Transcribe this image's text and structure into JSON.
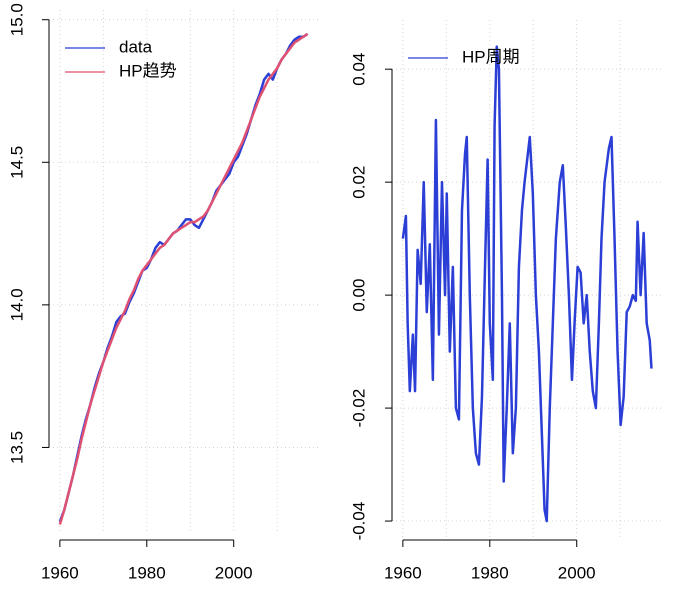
{
  "chart_data": [
    {
      "type": "line",
      "legend": "topleft",
      "grid": true,
      "x": [
        1960,
        1961,
        1962,
        1963,
        1964,
        1965,
        1966,
        1967,
        1968,
        1969,
        1970,
        1971,
        1972,
        1973,
        1974,
        1975,
        1976,
        1977,
        1978,
        1979,
        1980,
        1981,
        1982,
        1983,
        1984,
        1985,
        1986,
        1987,
        1988,
        1989,
        1990,
        1991,
        1992,
        1993,
        1994,
        1995,
        1996,
        1997,
        1998,
        1999,
        2000,
        2001,
        2002,
        2003,
        2004,
        2005,
        2006,
        2007,
        2008,
        2009,
        2010,
        2011,
        2012,
        2013,
        2014,
        2015,
        2016,
        2017
      ],
      "series": [
        {
          "name": "data",
          "color": "#2b3ed6",
          "values": [
            13.24,
            13.28,
            13.34,
            13.4,
            13.47,
            13.54,
            13.6,
            13.65,
            13.71,
            13.76,
            13.8,
            13.85,
            13.89,
            13.94,
            13.96,
            13.97,
            14.01,
            14.04,
            14.08,
            14.12,
            14.13,
            14.16,
            14.2,
            14.22,
            14.21,
            14.23,
            14.25,
            14.26,
            14.28,
            14.3,
            14.3,
            14.28,
            14.27,
            14.3,
            14.33,
            14.36,
            14.4,
            14.42,
            14.44,
            14.46,
            14.5,
            14.52,
            14.56,
            14.6,
            14.65,
            14.7,
            14.74,
            14.79,
            14.81,
            14.79,
            14.83,
            14.86,
            14.88,
            14.91,
            14.93,
            14.94,
            14.94,
            14.95
          ]
        },
        {
          "name": "HP趋势",
          "color": "#e05070",
          "values": [
            13.23,
            13.28,
            13.34,
            13.4,
            13.46,
            13.53,
            13.59,
            13.65,
            13.7,
            13.75,
            13.8,
            13.84,
            13.88,
            13.92,
            13.95,
            13.98,
            14.02,
            14.05,
            14.09,
            14.12,
            14.14,
            14.16,
            14.18,
            14.2,
            14.21,
            14.23,
            14.25,
            14.26,
            14.27,
            14.28,
            14.29,
            14.29,
            14.3,
            14.31,
            14.33,
            14.36,
            14.39,
            14.42,
            14.45,
            14.48,
            14.51,
            14.54,
            14.57,
            14.61,
            14.65,
            14.69,
            14.73,
            14.76,
            14.79,
            14.81,
            14.83,
            14.86,
            14.88,
            14.9,
            14.92,
            14.93,
            14.94,
            14.95
          ]
        }
      ],
      "xlim": [
        1957.5,
        2018.7
      ],
      "xticks": [
        1960,
        1980,
        2000
      ],
      "xgrid": [
        1960,
        1970,
        1980,
        1990,
        2000,
        2010
      ],
      "ylim": [
        13.2,
        15.02
      ],
      "yticks": [
        {
          "value": 15,
          "label": "15.0"
        },
        14.5,
        {
          "value": 14,
          "label": "14.0"
        },
        13.5
      ]
    },
    {
      "type": "line",
      "legend": "topleft",
      "grid": true,
      "x": [
        1960,
        1960.7,
        1961.1,
        1961.6,
        1962.3,
        1962.8,
        1963.4,
        1964.1,
        1964.8,
        1965.5,
        1966.2,
        1966.9,
        1967.6,
        1968.3,
        1969,
        1969.7,
        1970.1,
        1970.8,
        1971.5,
        1972.2,
        1972.9,
        1973.6,
        1974.3,
        1974.7,
        1975.4,
        1976.1,
        1976.8,
        1977.5,
        1978.2,
        1978.9,
        1979.5,
        1980,
        1980.7,
        1981.1,
        1981.6,
        1982.1,
        1982.8,
        1983.2,
        1983.9,
        1984.6,
        1985.3,
        1986,
        1986.7,
        1987.4,
        1988,
        1989.2,
        1989.9,
        1990.6,
        1991.3,
        1992,
        1992.6,
        1993.1,
        1993.8,
        1994.5,
        1995.2,
        1996.1,
        1996.8,
        1997.5,
        1998.2,
        1998.9,
        1999.5,
        2000.2,
        2000.9,
        2001.6,
        2002.3,
        2003,
        2003.7,
        2004.4,
        2005.1,
        2005.7,
        2006.4,
        2007.4,
        2008,
        2008.7,
        2009.4,
        2010.1,
        2010.8,
        2011.5,
        2012.2,
        2012.9,
        2013.6,
        2014,
        2014.7,
        2015.4,
        2016.1,
        2016.8,
        2017.2
      ],
      "series": [
        {
          "name": "HP周期",
          "color": "#2b3ed6",
          "values": [
            0.01,
            0.014,
            -0.005,
            -0.017,
            -0.007,
            -0.017,
            0.008,
            0.002,
            0.02,
            -0.003,
            0.009,
            -0.015,
            0.031,
            -0.007,
            0.02,
            0,
            0.018,
            -0.01,
            0.005,
            -0.02,
            -0.022,
            0.015,
            0.025,
            0.028,
            0,
            -0.02,
            -0.028,
            -0.03,
            -0.018,
            0.005,
            0.024,
            -0.005,
            -0.015,
            0.03,
            0.044,
            0.04,
            0,
            -0.033,
            -0.02,
            -0.005,
            -0.028,
            -0.02,
            0.005,
            0.015,
            0.02,
            0.028,
            0.018,
            0,
            -0.01,
            -0.025,
            -0.038,
            -0.04,
            -0.02,
            -0.005,
            0.01,
            0.02,
            0.023,
            0.012,
            0,
            -0.015,
            -0.005,
            0.005,
            0.004,
            -0.005,
            0,
            -0.01,
            -0.017,
            -0.02,
            -0.005,
            0.01,
            0.02,
            0.026,
            0.028,
            0.01,
            -0.01,
            -0.023,
            -0.018,
            -0.003,
            -0.002,
            0,
            -0.001,
            0.013,
            0,
            0.011,
            -0.005,
            -0.008,
            -0.013
          ]
        }
      ],
      "xlim": [
        1957.5,
        2018.7
      ],
      "xticks": [
        1960,
        1980,
        2000
      ],
      "xgrid": [
        1960,
        1970,
        1980,
        1990,
        2000,
        2010
      ],
      "ylim": [
        -0.043,
        0.048
      ],
      "yticks": [
        0.04,
        0.02,
        {
          "value": 0,
          "label": "0.00"
        },
        -0.02,
        -0.04
      ]
    }
  ]
}
